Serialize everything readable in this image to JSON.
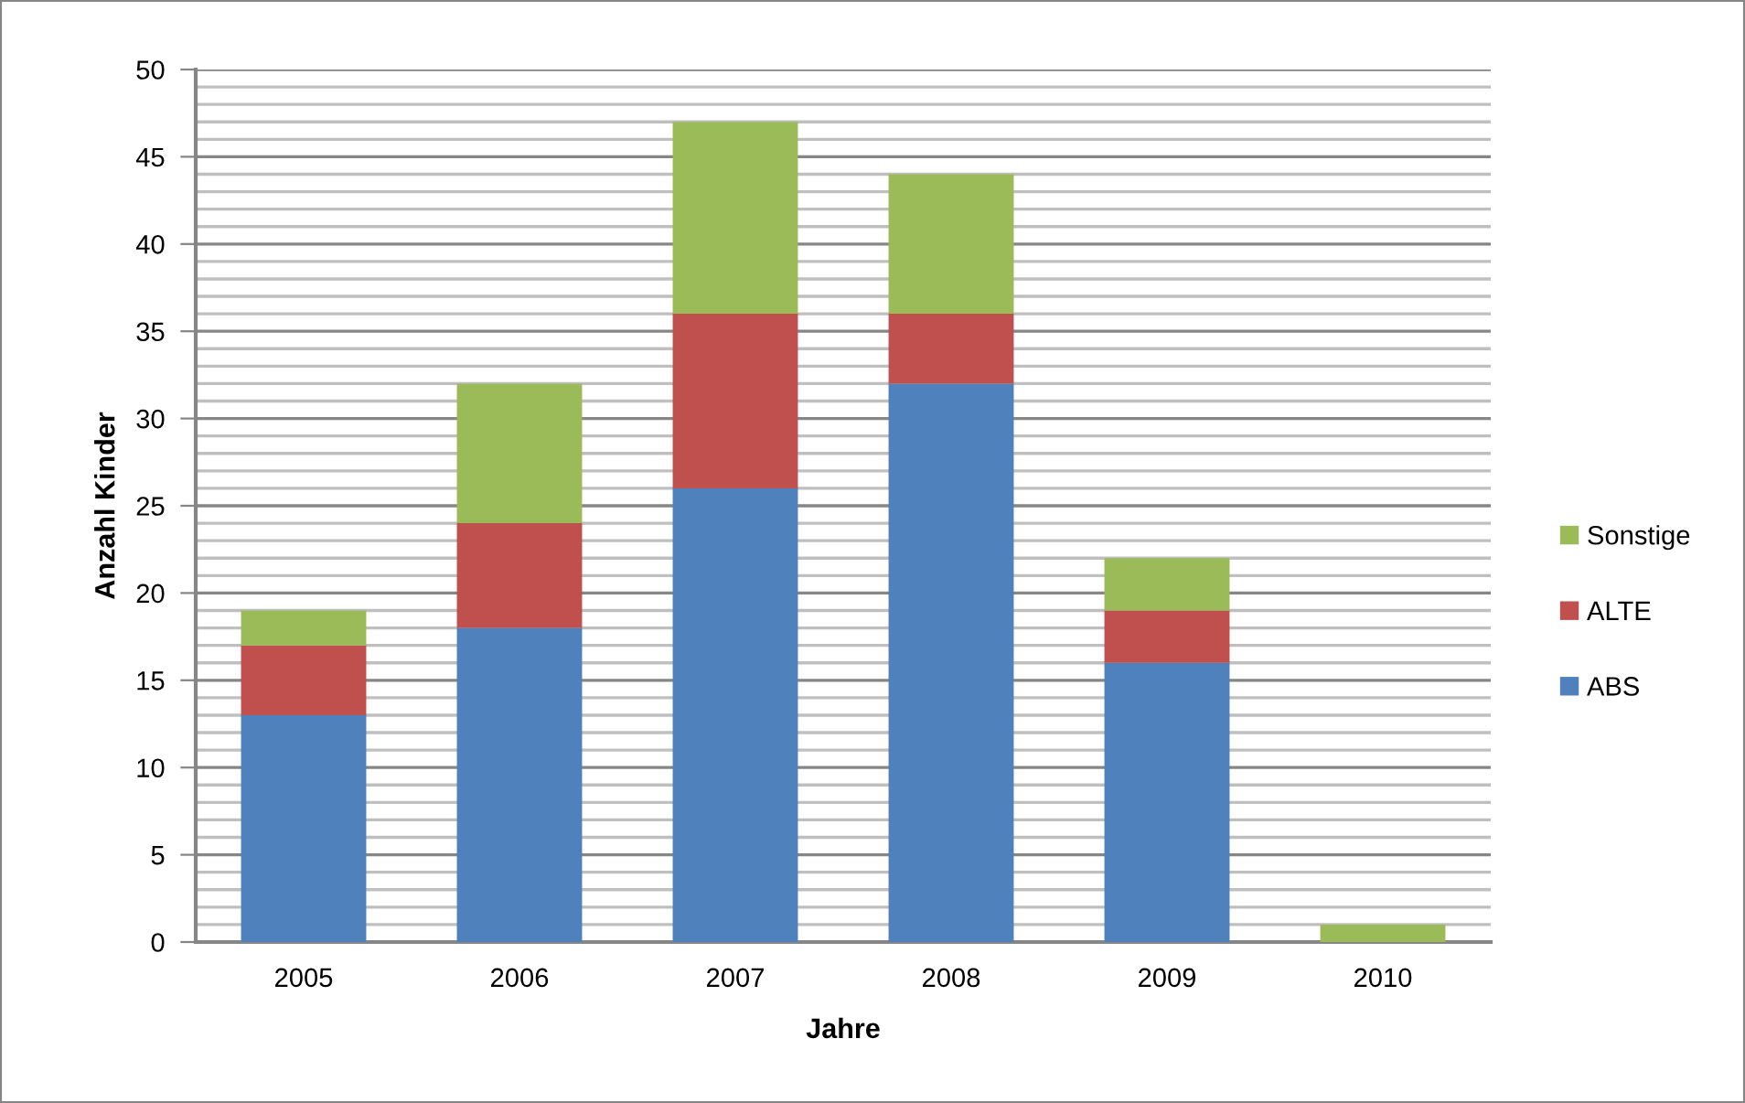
{
  "chart_data": {
    "type": "bar",
    "stacked": true,
    "xlabel": "Jahre",
    "ylabel": "Anzahl Kinder",
    "categories": [
      "2005",
      "2006",
      "2007",
      "2008",
      "2009",
      "2010"
    ],
    "series": [
      {
        "name": "ABS",
        "color": "#4f81bd",
        "values": [
          13,
          18,
          26,
          32,
          16,
          0
        ]
      },
      {
        "name": "ALTE",
        "color": "#c0504d",
        "values": [
          4,
          6,
          10,
          4,
          3,
          0
        ]
      },
      {
        "name": "Sonstige",
        "color": "#9bbb59",
        "values": [
          2,
          8,
          11,
          8,
          3,
          1
        ]
      }
    ],
    "ylim": [
      0,
      50
    ],
    "yticks": [
      0,
      {
        "value": 1,
        "label": null
      },
      {
        "value": 2,
        "label": null
      },
      {
        "value": 3,
        "label": null
      },
      {
        "value": 4,
        "label": null
      },
      5,
      {
        "value": 6,
        "label": null
      },
      {
        "value": 7,
        "label": null
      },
      {
        "value": 8,
        "label": null
      },
      {
        "value": 9,
        "label": null
      },
      10,
      {
        "value": 11,
        "label": null
      },
      {
        "value": 12,
        "label": null
      },
      {
        "value": 13,
        "label": null
      },
      {
        "value": 14,
        "label": null
      },
      15,
      {
        "value": 16,
        "label": null
      },
      {
        "value": 17,
        "label": null
      },
      {
        "value": 18,
        "label": null
      },
      {
        "value": 19,
        "label": null
      },
      20,
      {
        "value": 21,
        "label": null
      },
      {
        "value": 22,
        "label": null
      },
      {
        "value": 23,
        "label": null
      },
      {
        "value": 24,
        "label": null
      },
      25,
      {
        "value": 26,
        "label": null
      },
      {
        "value": 27,
        "label": null
      },
      {
        "value": 28,
        "label": null
      },
      {
        "value": 29,
        "label": null
      },
      30,
      {
        "value": 31,
        "label": null
      },
      {
        "value": 32,
        "label": null
      },
      {
        "value": 33,
        "label": null
      },
      {
        "value": 34,
        "label": null
      },
      35,
      {
        "value": 36,
        "label": null
      },
      {
        "value": 37,
        "label": null
      },
      {
        "value": 38,
        "label": null
      },
      {
        "value": 39,
        "label": null
      },
      40,
      {
        "value": 41,
        "label": null
      },
      {
        "value": 42,
        "label": null
      },
      {
        "value": 43,
        "label": null
      },
      {
        "value": 44,
        "label": null
      },
      45,
      {
        "value": 46,
        "label": null
      },
      {
        "value": 47,
        "label": null
      },
      {
        "value": 48,
        "label": null
      },
      {
        "value": 49,
        "label": null
      },
      50
    ],
    "grid": "y",
    "legend": "right"
  }
}
